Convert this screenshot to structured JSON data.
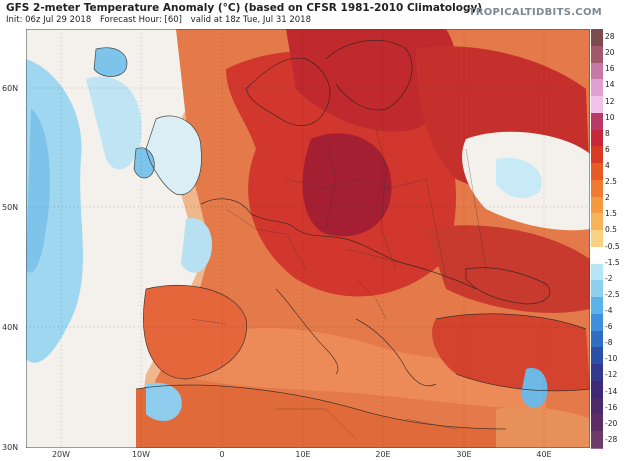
{
  "header": {
    "title": "GFS 2-meter Temperature Anomaly (°C) (based on CFSR 1981-2010 Climatology)",
    "init": "Init: 06z Jul 29 2018",
    "forecast_hour": "Forecast Hour: [60]",
    "valid": "valid at 18z Tue, Jul 31 2018",
    "brand": "TROPICALTIDBITS.COM"
  },
  "map": {
    "lat_labels": [
      "60N",
      "50N",
      "40N",
      "30N"
    ],
    "lon_labels": [
      "20W",
      "10W",
      "0",
      "10E",
      "20E",
      "30E",
      "40E"
    ]
  },
  "colorbar": {
    "labels": [
      "28",
      "20",
      "16",
      "14",
      "12",
      "10",
      "8",
      "6",
      "4",
      "2.5",
      "2",
      "1.5",
      "0.5",
      "-0.5",
      "-1.5",
      "-2",
      "-2.5",
      "-4",
      "-6",
      "-8",
      "-10",
      "-12",
      "-14",
      "-16",
      "-20",
      "-28"
    ],
    "colors": [
      "#7b4b4e",
      "#a2576a",
      "#c779a5",
      "#e1a0cf",
      "#f2c3ea",
      "#b83a67",
      "#c8273a",
      "#d83a24",
      "#e85b24",
      "#f07a2f",
      "#f59a40",
      "#f8b25a",
      "#fad183",
      "#ffffff",
      "#b7e6f4",
      "#8dd0ef",
      "#5ab4ea",
      "#3d91dc",
      "#2e6fc4",
      "#2a4fa6",
      "#33378d",
      "#3d2a77",
      "#4c2a6b",
      "#5c2e66",
      "#6e3a6a"
    ]
  },
  "colors": {
    "ocean_cool": "#a9dbf1",
    "neutral": "#f4f1ec",
    "warm_light": "#f3b888",
    "warm": "#e9834a",
    "hot": "#d9452e",
    "very_hot": "#b7242c",
    "extreme": "#9a1f33"
  }
}
